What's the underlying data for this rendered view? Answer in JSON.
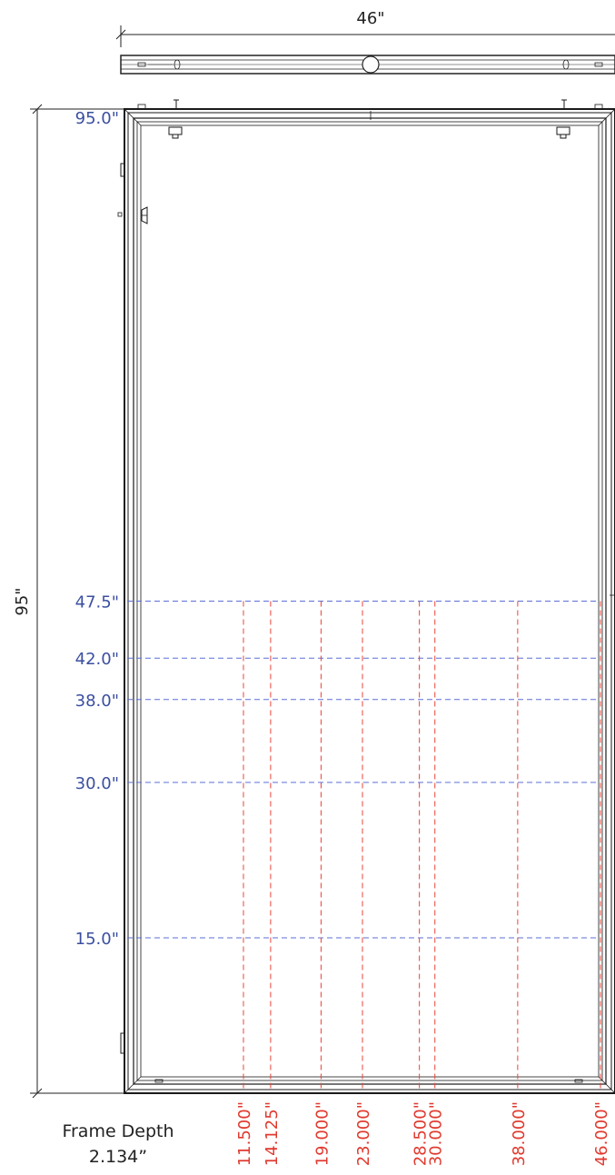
{
  "width_label": "46\"",
  "height_label": "95\"",
  "frame_depth": {
    "label": "Frame Depth",
    "value": "2.134”"
  },
  "height_marks": [
    {
      "value": 95.0,
      "label": "95.0\""
    },
    {
      "value": 47.5,
      "label": "47.5\""
    },
    {
      "value": 42.0,
      "label": "42.0\""
    },
    {
      "value": 38.0,
      "label": "38.0\""
    },
    {
      "value": 30.0,
      "label": "30.0\""
    },
    {
      "value": 15.0,
      "label": "15.0\""
    }
  ],
  "width_marks": [
    {
      "value": 11.5,
      "label": "11.500\""
    },
    {
      "value": 14.125,
      "label": "14.125\""
    },
    {
      "value": 19.0,
      "label": "19.000\""
    },
    {
      "value": 23.0,
      "label": "23.000\""
    },
    {
      "value": 28.5,
      "label": "28.500\""
    },
    {
      "value": 30.0,
      "label": "30.000\""
    },
    {
      "value": 38.0,
      "label": "38.000\""
    },
    {
      "value": 46.0,
      "label": "46.000\""
    }
  ],
  "colors": {
    "frame": "#1a1a1a",
    "height_guides": "#5b6fd6",
    "width_guides": "#e8443a",
    "height_labels": "#3b4fa0",
    "width_labels": "#e03a2f"
  }
}
